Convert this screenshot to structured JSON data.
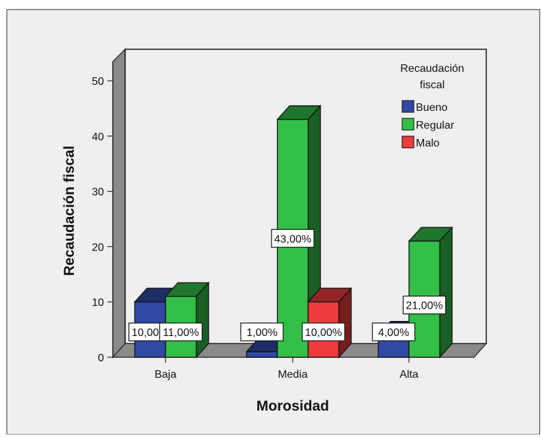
{
  "chart_data": {
    "type": "bar",
    "title": "",
    "xlabel": "Morosidad",
    "ylabel": "Recaudación fiscal",
    "categories": [
      "Baja",
      "Media",
      "Alta"
    ],
    "ylim": [
      0,
      50
    ],
    "yticks": [
      "0",
      "10",
      "20",
      "30",
      "40",
      "50"
    ],
    "legend": {
      "title": "Recaudación fiscal",
      "position": "top-right"
    },
    "series": [
      {
        "name": "Bueno",
        "color": "#2f49a5",
        "values": [
          10,
          1,
          4
        ],
        "labels": [
          "10,00%",
          "1,00%",
          "4,00%"
        ]
      },
      {
        "name": "Regular",
        "color": "#33bf48",
        "values": [
          11,
          43,
          21
        ],
        "labels": [
          "11,00%",
          "43,00%",
          "21,00%"
        ]
      },
      {
        "name": "Malo",
        "color": "#ee3b3e",
        "values": [
          0,
          10,
          0
        ],
        "labels": [
          "",
          "10,00%",
          ""
        ]
      }
    ],
    "grid": false,
    "style": "3d"
  }
}
